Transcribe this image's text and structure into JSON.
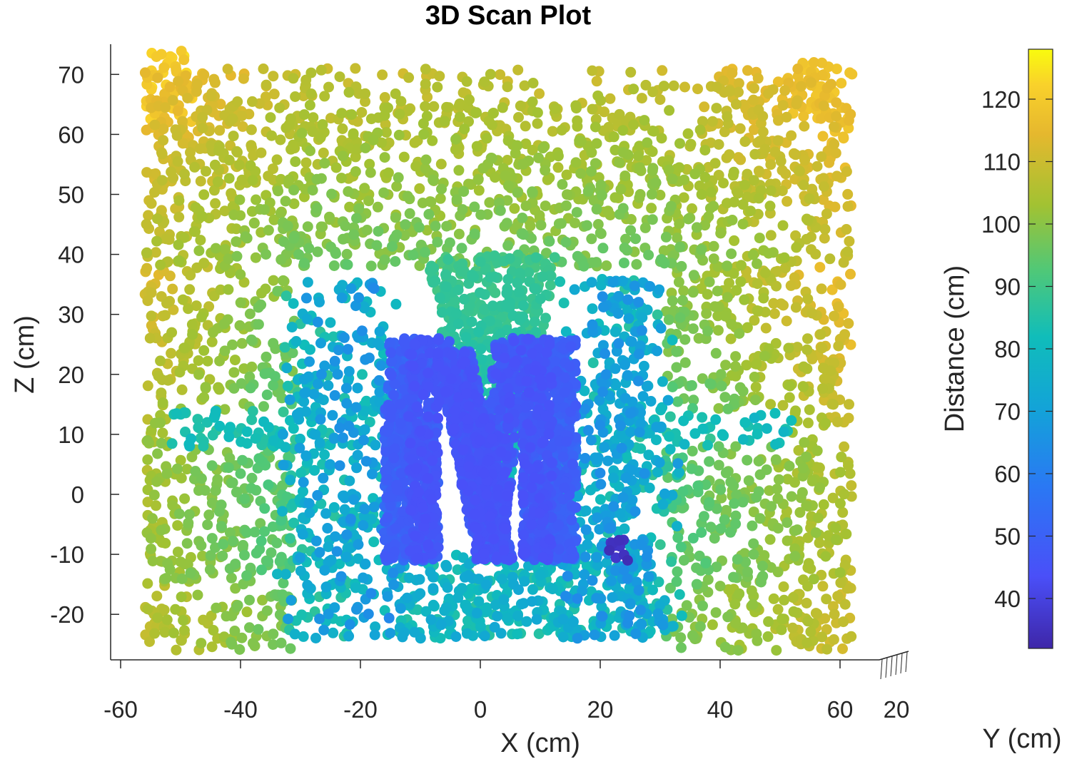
{
  "chart_data": {
    "type": "scatter",
    "title": "3D Scan Plot",
    "xlabel": "X (cm)",
    "ylabel": "Z (cm)",
    "zlabel": "Y (cm)",
    "colorbar_label": "Distance (cm)",
    "xlim": [
      -62,
      62
    ],
    "zlim": [
      -27,
      75
    ],
    "clim": [
      32,
      128
    ],
    "x_ticks": [
      -60,
      -40,
      -20,
      0,
      20,
      40,
      60
    ],
    "z_ticks": [
      -20,
      -10,
      0,
      10,
      20,
      30,
      40,
      50,
      60,
      70
    ],
    "colorbar_ticks": [
      40,
      50,
      60,
      70,
      80,
      90,
      100,
      110,
      120
    ],
    "depth_tick_label": "20",
    "colormap": [
      "#3e26a8",
      "#4a4ff8",
      "#2a78f4",
      "#13a3d8",
      "#10bdba",
      "#4fc878",
      "#a2c232",
      "#e6b82e",
      "#f9d12b",
      "#f9fb0e"
    ],
    "point_groups": [
      {
        "name": "back wall upper band",
        "x_range": [
          -56,
          62
        ],
        "z_range": [
          38,
          70
        ],
        "distance_range": [
          96,
          118
        ]
      },
      {
        "name": "left wall upper",
        "x_range": [
          -56,
          -36
        ],
        "z_range": [
          15,
          72
        ],
        "distance_range": [
          100,
          124
        ]
      },
      {
        "name": "right wall upper",
        "x_range": [
          36,
          62
        ],
        "z_range": [
          15,
          72
        ],
        "distance_range": [
          100,
          124
        ]
      },
      {
        "name": "left wall lower",
        "x_range": [
          -56,
          -32
        ],
        "z_range": [
          -26,
          10
        ],
        "distance_range": [
          96,
          108
        ]
      },
      {
        "name": "right wall lower",
        "x_range": [
          32,
          62
        ],
        "z_range": [
          -24,
          10
        ],
        "distance_range": [
          90,
          106
        ]
      },
      {
        "name": "central V shadow",
        "x_range": [
          -8,
          12
        ],
        "z_range": [
          -5,
          38
        ],
        "distance_range": [
          80,
          92
        ]
      },
      {
        "name": "scatter rays",
        "x_range": [
          -30,
          30
        ],
        "z_range": [
          -24,
          36
        ],
        "distance_range": [
          62,
          86
        ]
      },
      {
        "name": "M-shaped object",
        "x_range": [
          -17,
          17
        ],
        "z_range": [
          -12,
          26
        ],
        "distance_range": [
          42,
          56
        ]
      },
      {
        "name": "small cluster",
        "x_range": [
          21,
          25
        ],
        "z_range": [
          -11,
          -7
        ],
        "distance_range": [
          34,
          38
        ]
      }
    ]
  }
}
